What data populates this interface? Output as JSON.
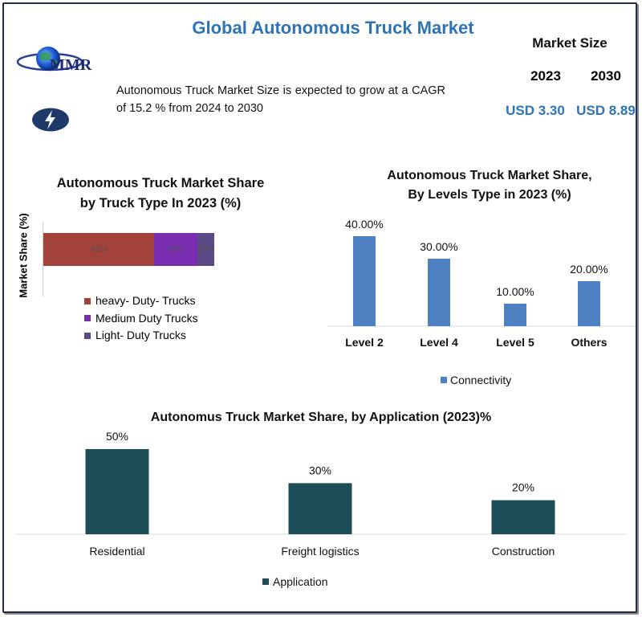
{
  "header": {
    "title": "Global Autonomous Truck Market",
    "logo_text": "MMR",
    "description": "Autonomous Truck Market Size is expected to grow at a CAGR of  15.2 % from 2024 to 2030",
    "market_size_label": "Market Size",
    "year_start": "2023",
    "year_end": "2030",
    "value_start": "USD 3.30",
    "value_end": "USD 8.89"
  },
  "colors": {
    "accent": "#2e74b5",
    "heavy": "#a3413b",
    "medium": "#7a2fb3",
    "light": "#5b4a86",
    "levels_bar": "#4f80c2",
    "application_bar": "#1d4e57"
  },
  "icons": [
    "globe-logo-icon",
    "lightning-bolt-icon"
  ],
  "chart_data": [
    {
      "type": "bar",
      "orientation": "horizontal-stacked",
      "title_line1": "Autonomous Truck Market Share",
      "title_line2": "by Truck Type In 2023 (%)",
      "ylabel": "Market Share (%)",
      "series": [
        {
          "name": "heavy- Duty- Trucks",
          "values": [
            65
          ],
          "label": "65%"
        },
        {
          "name": "Medium Duty Trucks",
          "values": [
            25
          ],
          "label": "25%"
        },
        {
          "name": "Light- Duty Trucks",
          "values": [
            10
          ],
          "label": "10%"
        }
      ],
      "legend": "bottom"
    },
    {
      "type": "bar",
      "title_line1": "Autonomous Truck Market Share,",
      "title_line2": "By Levels Type in 2023 (%)",
      "categories": [
        "Level 2",
        "Level 4",
        "Level 5",
        "Others"
      ],
      "series": [
        {
          "name": "Connectivity",
          "values": [
            40,
            30,
            10,
            20
          ]
        }
      ],
      "data_labels": [
        "40.00%",
        "30.00%",
        "10.00%",
        "20.00%"
      ],
      "legend": "bottom"
    },
    {
      "type": "bar",
      "title": "Autonomus Truck Market Share, by Application (2023)%",
      "categories": [
        "Residential",
        "Freight logistics",
        "Construction"
      ],
      "series": [
        {
          "name": "Application",
          "values": [
            50,
            30,
            20
          ]
        }
      ],
      "data_labels": [
        "50%",
        "30%",
        "20%"
      ],
      "legend": "bottom"
    }
  ]
}
